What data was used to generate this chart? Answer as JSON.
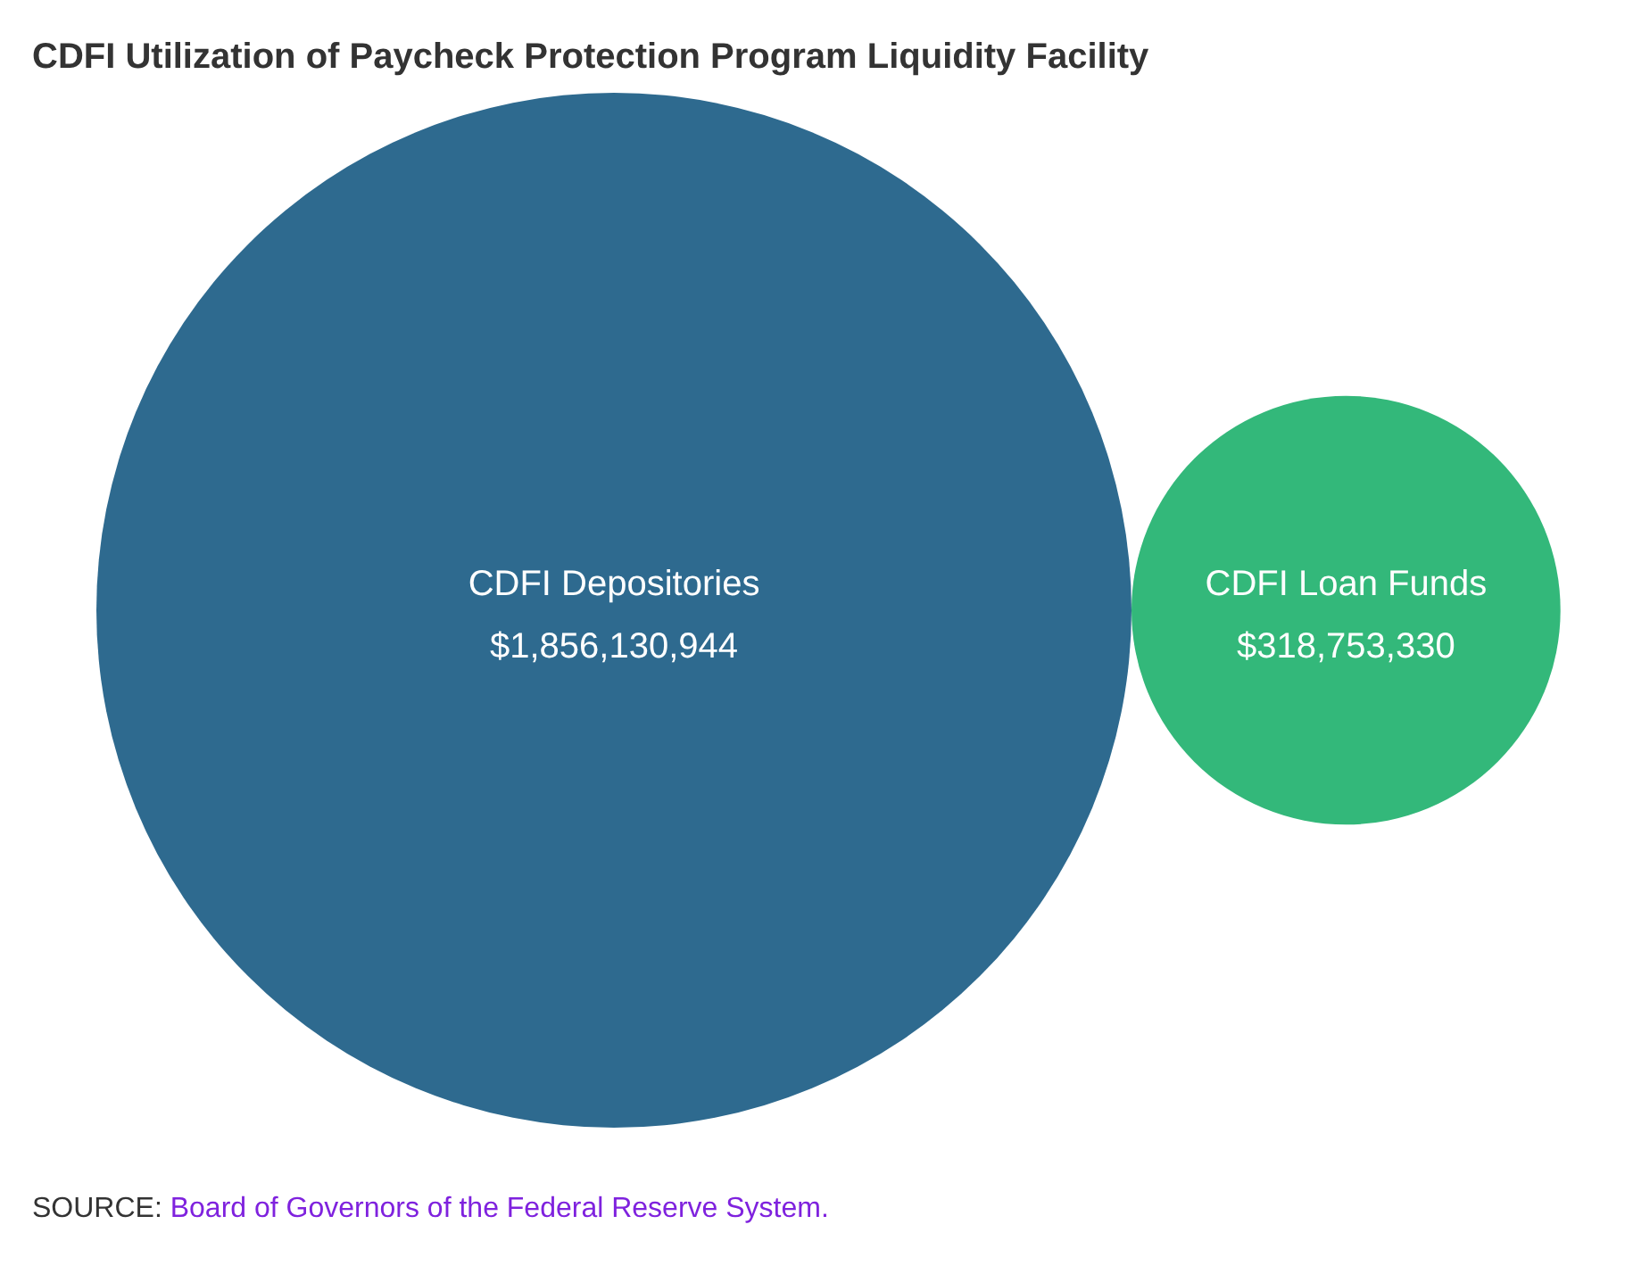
{
  "chart_data": {
    "type": "other",
    "title": "CDFI Utilization of Paycheck Protection Program Liquidity Facility",
    "categories": [
      "CDFI Depositories",
      "CDFI Loan Funds"
    ],
    "values": [
      1856130944,
      318753330
    ],
    "value_labels": [
      "$1,856,130,944",
      "$318,753,330"
    ],
    "colors": [
      "#2e6a8f",
      "#33b87a"
    ],
    "annotations": [
      "SOURCE:",
      "Board of Governors of the Federal Reserve System."
    ]
  }
}
